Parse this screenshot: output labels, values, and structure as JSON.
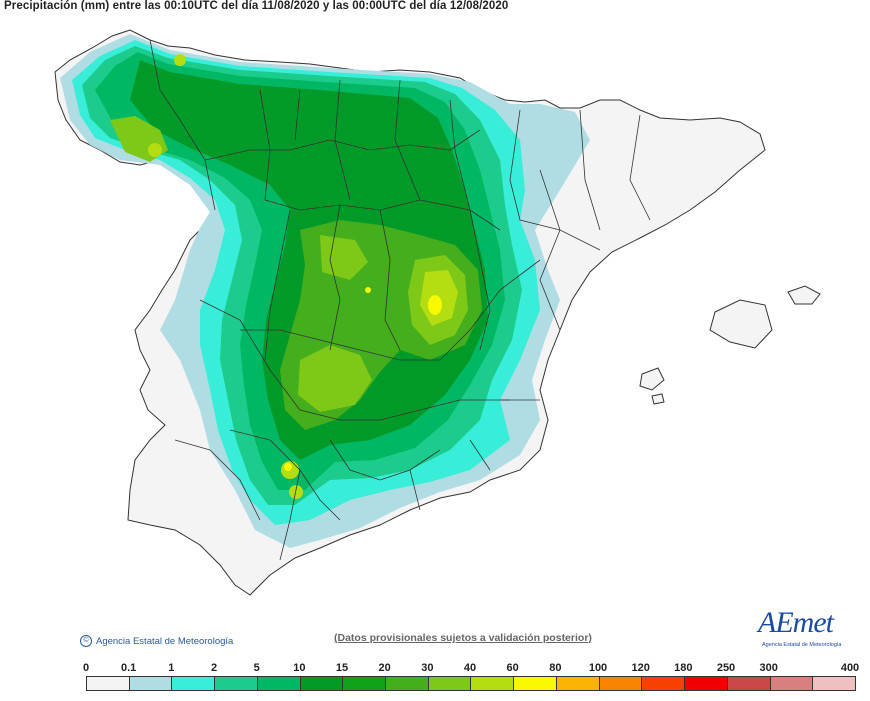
{
  "header": {
    "title": "Precipitación (mm) entre las 00:10UTC del día 11/08/2020 y las 00:00UTC del día 12/08/2020"
  },
  "footer": {
    "credit": "Agencia Estatal de Meteorología",
    "disclaimer": "(Datos provisionales sujetos a validación posterior)",
    "logo_text": "AEmet",
    "logo_sub": "Agencia Estatal de Meteorología"
  },
  "legend": {
    "thresholds": [
      "0",
      "0.1",
      "1",
      "2",
      "5",
      "10",
      "15",
      "20",
      "30",
      "40",
      "60",
      "80",
      "100",
      "120",
      "180",
      "250",
      "300",
      "400"
    ],
    "colors": [
      "#f4f4f4",
      "#b0dde4",
      "#38eed8",
      "#1ccc8c",
      "#00b864",
      "#009a28",
      "#10a21c",
      "#44ae1c",
      "#7ec818",
      "#b4de12",
      "#f8f800",
      "#f8b400",
      "#f88400",
      "#f84000",
      "#f00000",
      "#c84848",
      "#d88080",
      "#f0c0c0"
    ]
  },
  "map": {
    "colors": {
      "sea": "#ffffff",
      "land_dry": "#f4f4f4",
      "light_blue": "#b0dde4",
      "cyan": "#38eed8",
      "teal": "#1ccc8c",
      "green": "#00b864",
      "dark_green": "#009a28",
      "mid_green": "#44ae1c",
      "lime": "#7ec818",
      "yellow_green": "#b4de12",
      "yellow": "#f8f800",
      "border": "#333333"
    }
  }
}
